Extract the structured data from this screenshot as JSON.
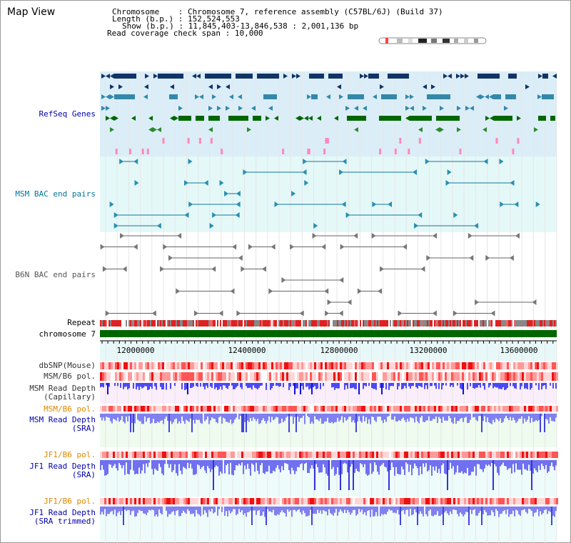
{
  "title": "Map View",
  "info": {
    "chromosome_key": "Chromosome",
    "chromosome_val": ": Chromosome 7, reference assembly (C57BL/6J) (Build 37)",
    "length_key": "Length (b.p.)",
    "length_val": ": 152,524,553",
    "show_key": "Show (b.p.)",
    "show_val": ": 11,845,403-13,846,538 : 2,001,136 bp",
    "span_key": "Read coverage check span",
    "span_val": ": 10,000"
  },
  "tracks": {
    "refseq": "RefSeq Genes",
    "msm_bac": "MSM BAC end pairs",
    "b6n_bac": "B6N BAC end pairs",
    "repeat": "Repeat",
    "chromosome": "chromosome 7",
    "dbsnp": "dbSNP(Mouse)",
    "msm_b6_pol": "MSM/B6 pol.",
    "msm_depth_cap_1": "MSM Read Depth",
    "msm_depth_cap_2": "(Capillary)",
    "msm_b6_pol_2": "MSM/B6 pol.",
    "msm_depth_sra_1": "MSM Read Depth",
    "msm_depth_sra_2": "(SRA)",
    "jf1_b6_pol": "JF1/B6 pol.",
    "jf1_depth_sra_1": "JF1 Read Depth",
    "jf1_depth_sra_2": "(SRA)",
    "jf1_b6_pol_2": "JF1/B6 pol.",
    "jf1_depth_trim_1": "JF1 Read Depth",
    "jf1_depth_trim_2": "(SRA trimmed)"
  },
  "ruler": {
    "ticks": [
      "12000000",
      "12400000",
      "12800000",
      "13200000",
      "13600000"
    ]
  },
  "colors": {
    "refseq_label": "#0000aa",
    "msm_label": "#007799",
    "b6n_label": "#555555",
    "orange_label": "#dd8800",
    "navy_label": "#0000aa",
    "chromosome_bar": "#006600",
    "refseq_bg": "#dbeef8",
    "msm_bg": "#e4f8f8"
  }
}
